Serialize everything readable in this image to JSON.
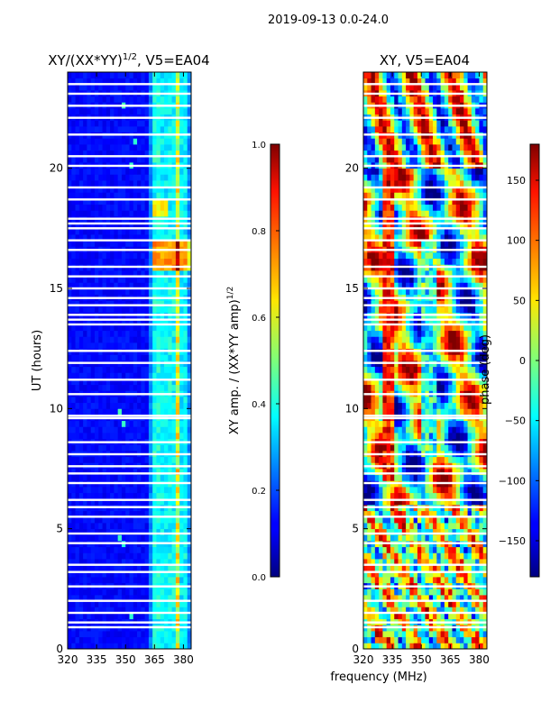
{
  "chart_data": [
    {
      "type": "heatmap",
      "suptitle": "2019-09-13 0.0-24.0",
      "title": "XY/(XX*YY)^1/2, V5=EA04",
      "title_base": "XY/(XX*YY)",
      "title_sup": "1/2",
      "title_rest": ", V5=EA04",
      "xlabel": "frequency (MHz)",
      "ylabel": "UT (hours)",
      "xlim": [
        320,
        384
      ],
      "ylim": [
        0,
        24
      ],
      "xticks": [
        "320",
        "335",
        "350",
        "365",
        "380"
      ],
      "yticks": [
        "0",
        "5",
        "10",
        "15",
        "20"
      ],
      "colorbar": {
        "label": "XY amp. / (XX*YY amp)^1/2",
        "label_base": "XY amp. / (XX*YY amp)",
        "label_sup": "1/2",
        "range": [
          0.0,
          1.0
        ],
        "ticks": [
          "0.0",
          "0.2",
          "0.4",
          "0.6",
          "0.8",
          "1.0"
        ],
        "colormap": "jet"
      }
    },
    {
      "type": "heatmap",
      "title": "XY, V5=EA04",
      "xlabel": "frequency (MHz)",
      "xlim": [
        320,
        384
      ],
      "ylim": [
        0,
        24
      ],
      "xticks": [
        "320",
        "335",
        "350",
        "365",
        "380"
      ],
      "yticks": [
        "0",
        "5",
        "10",
        "15",
        "20"
      ],
      "colorbar": {
        "label": "phase (deg)",
        "range": [
          -180,
          180
        ],
        "ticks": [
          "−150",
          "−100",
          "−50",
          "0",
          "50",
          "100",
          "150"
        ],
        "colormap": "jet"
      }
    }
  ]
}
